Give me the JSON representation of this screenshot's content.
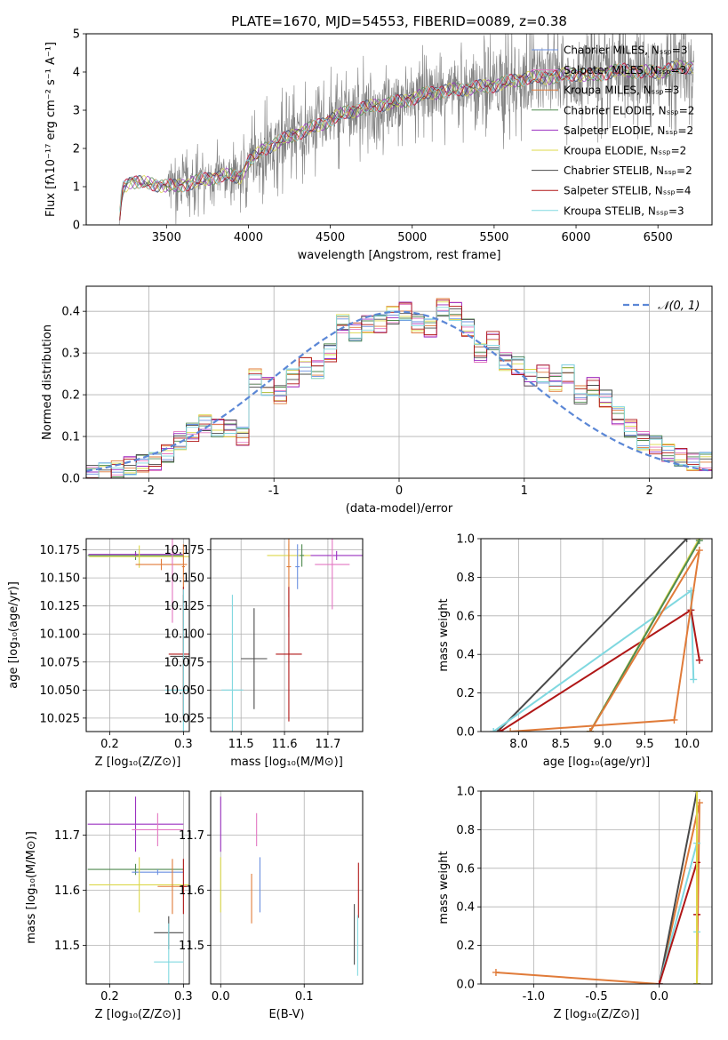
{
  "figure_title": "PLATE=1670, MJD=54553, FIBERID=0089, z=0.38",
  "colors": {
    "Chabrier MILES": "#6a8fe0",
    "Salpeter MILES": "#e377c2",
    "Kroupa MILES": "#e07b39",
    "Chabrier ELODIE": "#4f8a4f",
    "Salpeter ELODIE": "#9b30c0",
    "Kroupa ELODIE": "#dcd84a",
    "Chabrier STELIB": "#4a4a4a",
    "Salpeter STELIB": "#b01717",
    "Kroupa STELIB": "#80d8e0",
    "normal": "#5b87d6",
    "grid": "#b0b0b0"
  },
  "chart_data": [
    {
      "id": "spectrum",
      "type": "line",
      "title": "PLATE=1670, MJD=54553, FIBERID=0089, z=0.38",
      "xlabel": "wavelength [Angstrom, rest frame]",
      "ylabel": "Flux [fλ10⁻¹⁷ erg cm⁻² s⁻¹ A⁻¹]",
      "xlim": [
        3010,
        6830
      ],
      "ylim": [
        0,
        5
      ],
      "xticks": [
        3500,
        4000,
        4500,
        5000,
        5500,
        6000,
        6500
      ],
      "yticks": [
        0,
        1,
        2,
        3,
        4,
        5
      ],
      "grid": false,
      "legend_position": "right",
      "legend": [
        "Chabrier MILES, Nₛₛₚ=3",
        "Salpeter MILES, Nₛₛₚ=3",
        "Kroupa MILES, Nₛₛₚ=3",
        "Chabrier ELODIE, Nₛₛₚ=2",
        "Salpeter ELODIE, Nₛₛₚ=2",
        "Kroupa ELODIE, Nₛₛₚ=2",
        "Chabrier STELIB, Nₛₛₚ=2",
        "Salpeter STELIB, Nₛₛₚ=4",
        "Kroupa STELIB, Nₛₛₚ=3"
      ],
      "continuum": {
        "wavelength": [
          3210,
          3230,
          3280,
          3350,
          3450,
          3550,
          3650,
          3750,
          3850,
          3950,
          4000,
          4100,
          4200,
          4300,
          4400,
          4500,
          4600,
          4700,
          4800,
          4900,
          5000,
          5100,
          5200,
          5300,
          5400,
          5500,
          5600,
          5700,
          5800,
          5900,
          6000,
          6100,
          6200,
          6300,
          6400,
          6500,
          6600,
          6700
        ],
        "flux": [
          0.0,
          0.95,
          1.15,
          1.1,
          1.05,
          1.0,
          1.1,
          1.2,
          1.3,
          1.25,
          1.65,
          2.0,
          2.2,
          2.4,
          2.55,
          2.75,
          2.95,
          3.05,
          3.15,
          3.2,
          3.3,
          3.45,
          3.5,
          3.55,
          3.6,
          3.65,
          3.75,
          3.85,
          3.85,
          3.9,
          3.95,
          3.9,
          4.0,
          4.05,
          4.0,
          4.0,
          4.1,
          4.15
        ]
      }
    },
    {
      "id": "residual_distribution",
      "type": "line",
      "xlabel": "(data-model)/error",
      "ylabel": "Normed distribution",
      "xlim": [
        -2.5,
        2.5
      ],
      "ylim": [
        0,
        0.46
      ],
      "xticks": [
        -2,
        -1,
        0,
        1,
        2
      ],
      "yticks": [
        0.0,
        0.1,
        0.2,
        0.3,
        0.4
      ],
      "grid": true,
      "legend": [
        "𝒩(0, 1)"
      ],
      "legend_position": "top-right",
      "histogram_bins": 50,
      "histogram_profile_x": [
        -2.45,
        -2.35,
        -2.25,
        -2.15,
        -2.05,
        -1.95,
        -1.85,
        -1.75,
        -1.65,
        -1.55,
        -1.45,
        -1.35,
        -1.25,
        -1.15,
        -1.05,
        -0.95,
        -0.85,
        -0.75,
        -0.65,
        -0.55,
        -0.45,
        -0.35,
        -0.25,
        -0.15,
        -0.05,
        0.05,
        0.15,
        0.25,
        0.35,
        0.45,
        0.55,
        0.65,
        0.75,
        0.85,
        0.95,
        1.05,
        1.15,
        1.25,
        1.35,
        1.45,
        1.55,
        1.65,
        1.75,
        1.85,
        1.95,
        2.05,
        2.15,
        2.25,
        2.35,
        2.45
      ],
      "histogram_profile_y": [
        0.01,
        0.015,
        0.02,
        0.03,
        0.035,
        0.04,
        0.06,
        0.09,
        0.11,
        0.13,
        0.12,
        0.12,
        0.1,
        0.24,
        0.22,
        0.2,
        0.24,
        0.27,
        0.26,
        0.3,
        0.37,
        0.35,
        0.37,
        0.37,
        0.39,
        0.4,
        0.37,
        0.36,
        0.41,
        0.4,
        0.36,
        0.3,
        0.33,
        0.28,
        0.27,
        0.24,
        0.25,
        0.23,
        0.25,
        0.2,
        0.22,
        0.19,
        0.15,
        0.12,
        0.09,
        0.08,
        0.06,
        0.05,
        0.04,
        0.04
      ]
    },
    {
      "id": "age_vs_Z",
      "type": "scatter",
      "xlabel": "Z [log₁₀(Z/Z⊙)]",
      "ylabel": "age  [log₁₀(age/yr)]",
      "xlim": [
        0.168,
        0.308
      ],
      "ylim": [
        10.013,
        10.185
      ],
      "xticks": [
        0.2,
        0.3
      ],
      "yticks": [
        10.025,
        10.05,
        10.075,
        10.1,
        10.125,
        10.15,
        10.175
      ],
      "grid": true,
      "points": [
        {
          "ssp": "Chabrier ELODIE",
          "x": 0.235,
          "y": 10.17,
          "xerr": 0.065,
          "yerr": 0.004
        },
        {
          "ssp": "Salpeter ELODIE",
          "x": 0.235,
          "y": 10.171,
          "xerr": 0.064,
          "yerr": 0.002
        },
        {
          "ssp": "Kroupa ELODIE",
          "x": 0.24,
          "y": 10.169,
          "xerr": 0.068,
          "yerr": 0.01
        },
        {
          "ssp": "Kroupa MILES",
          "x": 0.27,
          "y": 10.162,
          "xerr": 0.035,
          "yerr": 0.005
        },
        {
          "ssp": "Kroupa MILES",
          "x": 0.3,
          "y": 10.16,
          "xerr": 0.002,
          "yerr": 0.02
        },
        {
          "ssp": "Salpeter MILES",
          "x": 0.285,
          "y": 10.15,
          "xerr": 0.001,
          "yerr": 0.04
        },
        {
          "ssp": "Chabrier STELIB",
          "x": 0.3,
          "y": 10.08,
          "xerr": 0.018,
          "yerr": 0.055
        },
        {
          "ssp": "Salpeter STELIB",
          "x": 0.3,
          "y": 10.082,
          "xerr": 0.02,
          "yerr": 0.06
        },
        {
          "ssp": "Kroupa STELIB",
          "x": 0.3,
          "y": 10.05,
          "xerr": 0.025,
          "yerr": 0.09
        }
      ]
    },
    {
      "id": "age_vs_mass",
      "type": "scatter",
      "xlabel": "mass [log₁₀(M/M⊙)]",
      "xlim": [
        11.43,
        11.78
      ],
      "ylim": [
        10.013,
        10.185
      ],
      "xticks": [
        11.5,
        11.6,
        11.7
      ],
      "yticks": [
        10.025,
        10.05,
        10.075,
        10.1,
        10.125,
        10.15,
        10.175
      ],
      "grid": true,
      "points": [
        {
          "ssp": "Salpeter ELODIE",
          "x": 11.72,
          "y": 10.17,
          "xerr": 0.06,
          "yerr": 0.004
        },
        {
          "ssp": "Kroupa ELODIE",
          "x": 11.61,
          "y": 10.17,
          "xerr": 0.05,
          "yerr": 0.01
        },
        {
          "ssp": "Salpeter MILES",
          "x": 11.71,
          "y": 10.162,
          "xerr": 0.04,
          "yerr": 0.04
        },
        {
          "ssp": "Chabrier MILES",
          "x": 11.63,
          "y": 10.16,
          "xerr": 0.005,
          "yerr": 0.02
        },
        {
          "ssp": "Chabrier ELODIE",
          "x": 11.64,
          "y": 10.17,
          "xerr": 0.005,
          "yerr": 0.01
        },
        {
          "ssp": "Kroupa MILES",
          "x": 11.61,
          "y": 10.16,
          "xerr": 0.005,
          "yerr": 0.045
        },
        {
          "ssp": "Salpeter STELIB",
          "x": 11.61,
          "y": 10.082,
          "xerr": 0.03,
          "yerr": 0.06
        },
        {
          "ssp": "Chabrier STELIB",
          "x": 11.53,
          "y": 10.078,
          "xerr": 0.03,
          "yerr": 0.045
        },
        {
          "ssp": "Kroupa STELIB",
          "x": 11.48,
          "y": 10.05,
          "xerr": 0.025,
          "yerr": 0.085
        }
      ]
    },
    {
      "id": "mass_weight_vs_age",
      "type": "line",
      "xlabel": "age  [log₁₀(age/yr)]",
      "ylabel": "mass weight",
      "xlim": [
        7.55,
        10.3
      ],
      "ylim": [
        0,
        1
      ],
      "xticks": [
        8.0,
        8.5,
        9.0,
        9.5,
        10.0
      ],
      "yticks": [
        0.0,
        0.2,
        0.4,
        0.6,
        0.8,
        1.0
      ],
      "grid": true,
      "series": [
        {
          "ssp": "Chabrier STELIB",
          "x": [
            7.75,
            10.0
          ],
          "y": [
            0.0,
            1.0
          ]
        },
        {
          "ssp": "Kroupa STELIB",
          "x": [
            7.7,
            10.05,
            10.08
          ],
          "y": [
            0.0,
            0.73,
            0.27
          ]
        },
        {
          "ssp": "Salpeter STELIB",
          "x": [
            7.78,
            10.05,
            10.15
          ],
          "y": [
            0.0,
            0.63,
            0.37
          ]
        },
        {
          "ssp": "Kroupa ELODIE",
          "x": [
            8.85,
            10.15
          ],
          "y": [
            0.0,
            1.0
          ]
        },
        {
          "ssp": "Chabrier ELODIE",
          "x": [
            8.85,
            10.15
          ],
          "y": [
            0.0,
            0.99
          ]
        },
        {
          "ssp": "Kroupa MILES",
          "x": [
            7.9,
            9.85,
            10.15,
            8.85
          ],
          "y": [
            0.0,
            0.06,
            0.94,
            0.0
          ]
        }
      ]
    },
    {
      "id": "mass_vs_Z",
      "type": "scatter",
      "xlabel": "Z [log₁₀(Z/Z⊙)]",
      "ylabel": "mass [log₁₀(M/M⊙)]",
      "xlim": [
        0.168,
        0.308
      ],
      "ylim": [
        11.43,
        11.78
      ],
      "xticks": [
        0.2,
        0.3
      ],
      "yticks": [
        11.5,
        11.6,
        11.7
      ],
      "grid": true,
      "points": [
        {
          "ssp": "Salpeter ELODIE",
          "x": 0.235,
          "y": 11.72,
          "xerr": 0.065,
          "yerr": 0.05
        },
        {
          "ssp": "Salpeter MILES",
          "x": 0.265,
          "y": 11.71,
          "xerr": 0.035,
          "yerr": 0.03
        },
        {
          "ssp": "Chabrier ELODIE",
          "x": 0.235,
          "y": 11.638,
          "xerr": 0.065,
          "yerr": 0.01
        },
        {
          "ssp": "Chabrier MILES",
          "x": 0.265,
          "y": 11.633,
          "xerr": 0.035,
          "yerr": 0.005
        },
        {
          "ssp": "Kroupa ELODIE",
          "x": 0.24,
          "y": 11.61,
          "xerr": 0.068,
          "yerr": 0.05
        },
        {
          "ssp": "Kroupa MILES",
          "x": 0.285,
          "y": 11.607,
          "xerr": 0.02,
          "yerr": 0.05
        },
        {
          "ssp": "Salpeter STELIB",
          "x": 0.3,
          "y": 11.607,
          "xerr": 0.005,
          "yerr": 0.05
        },
        {
          "ssp": "Chabrier STELIB",
          "x": 0.28,
          "y": 11.523,
          "xerr": 0.02,
          "yerr": 0.03
        },
        {
          "ssp": "Kroupa STELIB",
          "x": 0.28,
          "y": 11.47,
          "xerr": 0.02,
          "yerr": 0.07
        }
      ]
    },
    {
      "id": "mass_vs_ebv",
      "type": "scatter",
      "xlabel": "E(B-V)",
      "xlim": [
        -0.012,
        0.17
      ],
      "ylim": [
        11.43,
        11.78
      ],
      "xticks": [
        0.0,
        0.1
      ],
      "yticks": [
        11.5,
        11.6,
        11.7
      ],
      "grid": true,
      "points": [
        {
          "ssp": "Salpeter ELODIE",
          "x": 0.0,
          "y": 11.72,
          "yerr": 0.05
        },
        {
          "ssp": "Kroupa ELODIE",
          "x": 0.0,
          "y": 11.61,
          "yerr": 0.05
        },
        {
          "ssp": "Salpeter MILES",
          "x": 0.043,
          "y": 11.71,
          "yerr": 0.03
        },
        {
          "ssp": "Kroupa MILES",
          "x": 0.037,
          "y": 11.585,
          "yerr": 0.045
        },
        {
          "ssp": "Chabrier MILES",
          "x": 0.047,
          "y": 11.61,
          "yerr": 0.05
        },
        {
          "ssp": "Salpeter STELIB",
          "x": 0.165,
          "y": 11.6,
          "yerr": 0.05
        },
        {
          "ssp": "Chabrier STELIB",
          "x": 0.16,
          "y": 11.52,
          "yerr": 0.055
        },
        {
          "ssp": "Kroupa STELIB",
          "x": 0.164,
          "y": 11.5,
          "yerr": 0.055
        }
      ]
    },
    {
      "id": "mass_weight_vs_Z",
      "type": "line",
      "xlabel": "Z [log₁₀(Z/Z⊙)]",
      "ylabel": "mass weight",
      "xlim": [
        -1.42,
        0.42
      ],
      "ylim": [
        0,
        1
      ],
      "xticks": [
        -1.0,
        -0.5,
        0.0
      ],
      "yticks": [
        0.0,
        0.2,
        0.4,
        0.6,
        0.8,
        1.0
      ],
      "grid": true,
      "series": [
        {
          "ssp": "Kroupa MILES",
          "x": [
            -1.3,
            0.0,
            0.32,
            0.3
          ],
          "y": [
            0.06,
            0.0,
            0.94,
            0.0
          ]
        },
        {
          "ssp": "Chabrier STELIB",
          "x": [
            0.0,
            0.3,
            0.3
          ],
          "y": [
            0.0,
            1.0,
            0.0
          ]
        },
        {
          "ssp": "Kroupa STELIB",
          "x": [
            0.0,
            0.3,
            0.3
          ],
          "y": [
            0.0,
            0.73,
            0.27
          ]
        },
        {
          "ssp": "Salpeter STELIB",
          "x": [
            0.0,
            0.3,
            0.3
          ],
          "y": [
            0.0,
            0.63,
            0.36
          ]
        },
        {
          "ssp": "Kroupa ELODIE",
          "x": [
            0.3,
            0.3
          ],
          "y": [
            0.0,
            1.0
          ]
        }
      ]
    }
  ]
}
